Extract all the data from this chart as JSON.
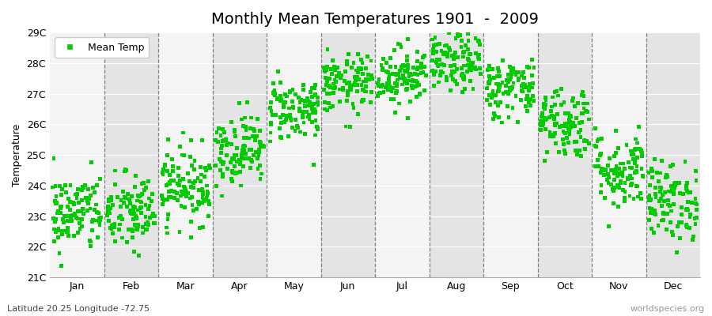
{
  "title": "Monthly Mean Temperatures 1901  -  2009",
  "ylabel": "Temperature",
  "xlabel_bottom": "Latitude 20.25 Longitude -72.75",
  "watermark": "worldspecies.org",
  "ylim": [
    21.0,
    29.0
  ],
  "ytick_labels": [
    "21C",
    "22C",
    "23C",
    "24C",
    "25C",
    "26C",
    "27C",
    "28C",
    "29C"
  ],
  "ytick_values": [
    21,
    22,
    23,
    24,
    25,
    26,
    27,
    28,
    29
  ],
  "months": [
    "Jan",
    "Feb",
    "Mar",
    "Apr",
    "May",
    "Jun",
    "Jul",
    "Aug",
    "Sep",
    "Oct",
    "Nov",
    "Dec"
  ],
  "dot_color": "#00CC00",
  "background_color": "#ececec",
  "band_color_light": "#f4f4f4",
  "band_color_dark": "#e4e4e4",
  "mean_temps": [
    23.1,
    23.1,
    24.0,
    25.2,
    26.5,
    27.3,
    27.6,
    28.0,
    27.2,
    26.1,
    24.5,
    23.5
  ],
  "std_temps": [
    0.65,
    0.65,
    0.62,
    0.58,
    0.52,
    0.48,
    0.48,
    0.48,
    0.5,
    0.6,
    0.65,
    0.65
  ],
  "n_years": 109,
  "seed": 42,
  "title_fontsize": 14,
  "axis_label_fontsize": 9,
  "tick_label_fontsize": 9,
  "legend_fontsize": 9,
  "marker": "s",
  "markersize": 3.5
}
